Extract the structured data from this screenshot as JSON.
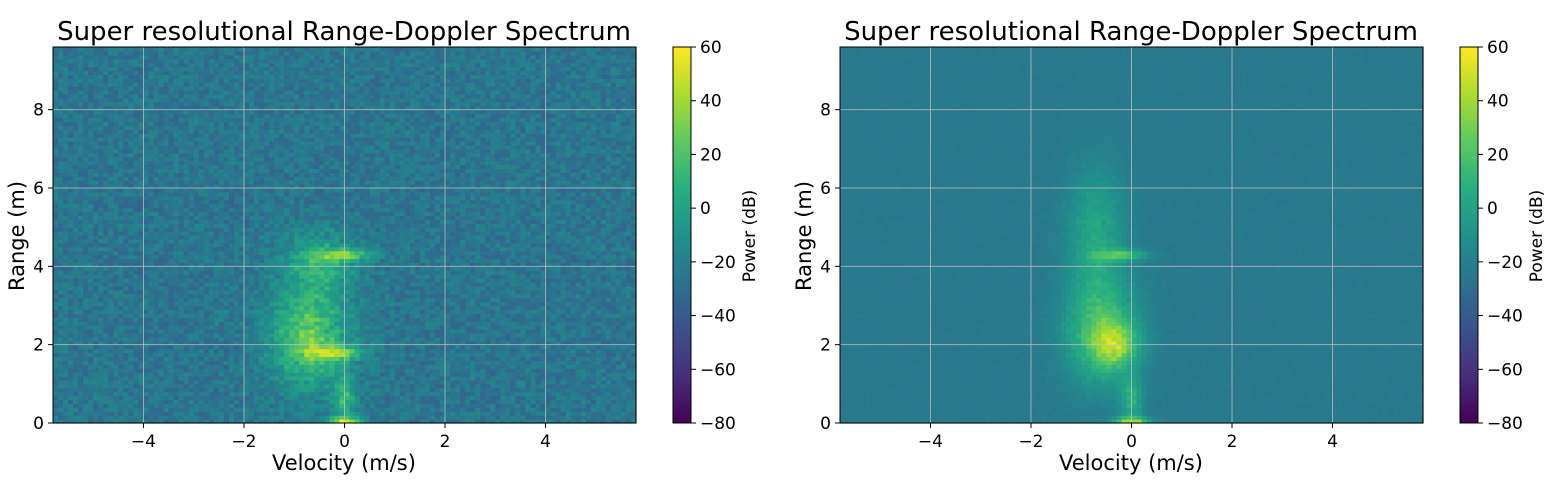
{
  "chart_data": [
    {
      "type": "heatmap",
      "title": "Super resolutional Range-Doppler Spectrum",
      "xlabel": "Velocity (m/s)",
      "ylabel": "Range (m)",
      "xlim": [
        -5.8,
        5.8
      ],
      "ylim": [
        0,
        9.6
      ],
      "xticks": [
        -4,
        -2,
        0,
        2,
        4
      ],
      "yticks": [
        0,
        2,
        4,
        6,
        8
      ],
      "grid": true,
      "colormap": "viridis",
      "noise_floor_db": -25,
      "noise_spread_db": 18,
      "features": [
        {
          "v": -0.7,
          "r": 2.2,
          "v_sigma": 0.55,
          "r_sigma": 0.9,
          "peak_db": 25
        },
        {
          "v": -0.5,
          "r": 4.1,
          "v_sigma": 0.5,
          "r_sigma": 0.55,
          "peak_db": 8
        },
        {
          "v": 0.0,
          "r": 4.3,
          "v_sigma": 0.4,
          "r_sigma": 0.1,
          "peak_db": 20
        },
        {
          "v": -0.2,
          "r": 1.8,
          "v_sigma": 0.35,
          "r_sigma": 0.12,
          "peak_db": 30
        },
        {
          "v": 0.0,
          "r": 0.05,
          "v_sigma": 0.25,
          "r_sigma": 0.08,
          "peak_db": 38
        },
        {
          "v": 0.0,
          "r": 0.6,
          "v_sigma": 0.15,
          "r_sigma": 0.4,
          "peak_db": 10
        }
      ],
      "colorbar": {
        "label": "Power (dB)",
        "ticks": [
          "60",
          "40",
          "20",
          "0",
          "−20",
          "−40",
          "−60",
          "−80"
        ],
        "range": [
          -80,
          60
        ]
      }
    },
    {
      "type": "heatmap",
      "title": "Super resolutional Range-Doppler Spectrum",
      "xlabel": "Velocity (m/s)",
      "ylabel": "Range (m)",
      "xlim": [
        -5.8,
        5.8
      ],
      "ylim": [
        0,
        9.6
      ],
      "xticks": [
        -4,
        -2,
        0,
        2,
        4
      ],
      "yticks": [
        0,
        2,
        4,
        6,
        8
      ],
      "grid": true,
      "colormap": "viridis",
      "noise_floor_db": -23,
      "noise_spread_db": 2.5,
      "features": [
        {
          "v": -0.6,
          "r": 2.3,
          "v_sigma": 0.5,
          "r_sigma": 0.9,
          "peak_db": 20
        },
        {
          "v": -0.7,
          "r": 4.8,
          "v_sigma": 0.4,
          "r_sigma": 1.2,
          "peak_db": 4
        },
        {
          "v": -0.3,
          "r": 2.0,
          "v_sigma": 0.3,
          "r_sigma": 0.4,
          "peak_db": 14
        },
        {
          "v": -0.2,
          "r": 4.3,
          "v_sigma": 0.35,
          "r_sigma": 0.1,
          "peak_db": 12
        },
        {
          "v": 0.0,
          "r": 0.05,
          "v_sigma": 0.25,
          "r_sigma": 0.08,
          "peak_db": 35
        },
        {
          "v": 0.0,
          "r": 0.6,
          "v_sigma": 0.15,
          "r_sigma": 0.4,
          "peak_db": 8
        }
      ],
      "colorbar": {
        "label": "Power (dB)",
        "ticks": [
          "60",
          "40",
          "20",
          "0",
          "−20",
          "−40",
          "−60",
          "−80"
        ],
        "range": [
          -80,
          60
        ]
      }
    }
  ]
}
